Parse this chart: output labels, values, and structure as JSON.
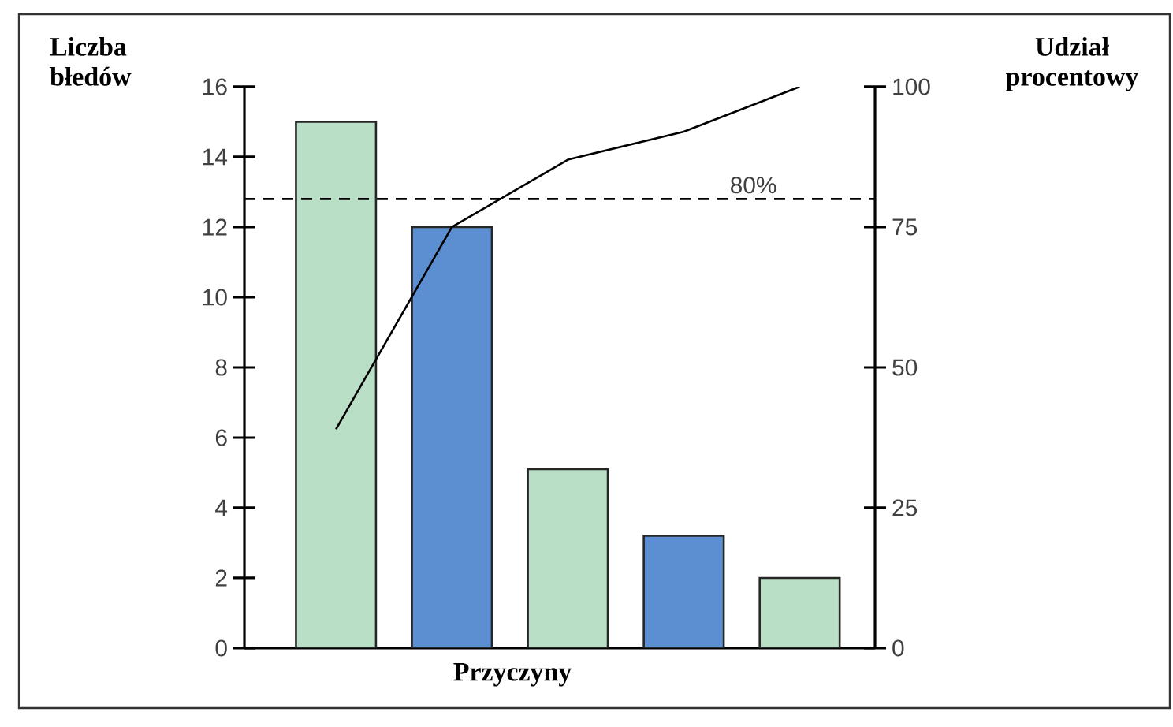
{
  "chart_data": {
    "type": "bar",
    "xlabel": "Przyczyny",
    "ylabel": "Liczba błedów",
    "y2label": "Udział procentowy",
    "categories": [
      null,
      null,
      null,
      null,
      null
    ],
    "series": [
      {
        "axis": "y",
        "values": [
          15,
          12,
          5.1,
          3.2,
          2
        ],
        "colors": [
          "#b9dfc6",
          "#5b8fd1",
          "#b9dfc6",
          "#5b8fd1",
          "#b9dfc6"
        ]
      },
      {
        "type": "line",
        "axis": "y2",
        "color": "#000000",
        "values": [
          39,
          75,
          87,
          92,
          100
        ]
      }
    ],
    "ylim": [
      0,
      16
    ],
    "yticks": [
      0,
      2,
      4,
      6,
      8,
      10,
      12,
      14,
      16
    ],
    "y2lim": [
      0,
      100
    ],
    "y2ticks": [
      0,
      25,
      50,
      75,
      100
    ],
    "ref_lines": [
      {
        "axis": "y2",
        "value": 80,
        "label": "80%",
        "line_style": "dashed",
        "color": "#000000"
      }
    ],
    "grid": false,
    "marker": "none"
  }
}
